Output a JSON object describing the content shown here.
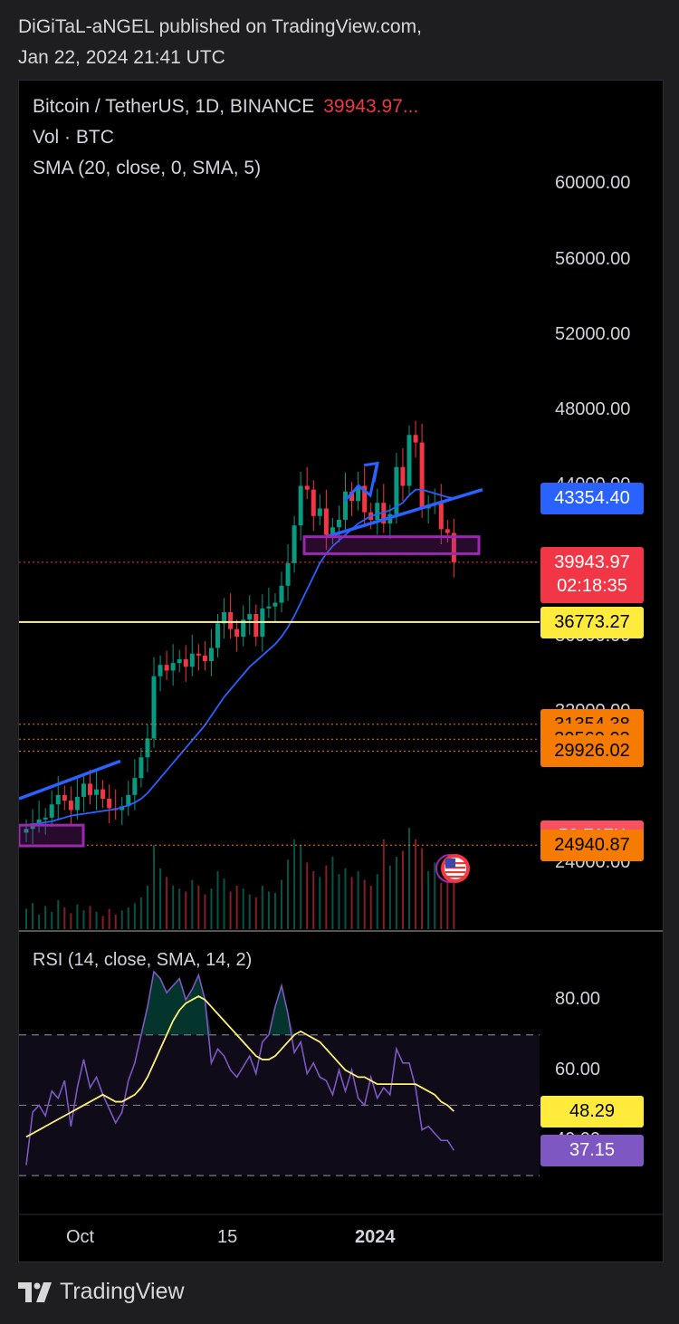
{
  "header": {
    "line1": "DiGiTaL-aNGEL published on TradingView.com,",
    "line2": "Jan 22, 2024 21:41 UTC"
  },
  "legend": {
    "symbol": "Bitcoin / TetherUS, 1D, BINANCE",
    "last_price": "39943.97...",
    "volume": "Vol · BTC",
    "sma": "SMA (20, close, 0, SMA, 5)"
  },
  "price_axis": [
    {
      "label": "60000.00",
      "value": 60000
    },
    {
      "label": "56000.00",
      "value": 56000
    },
    {
      "label": "52000.00",
      "value": 52000
    },
    {
      "label": "48000.00",
      "value": 48000
    },
    {
      "label": "44000.00",
      "value": 44000
    },
    {
      "label": "36000.00",
      "value": 36000
    },
    {
      "label": "32000.00",
      "value": 32000
    },
    {
      "label": "24000.00",
      "value": 24000
    }
  ],
  "badges": {
    "sma_value": {
      "text": "43354.40",
      "value": 43354.4,
      "color": "#2962ff"
    },
    "last_price": {
      "text": "39943.97",
      "countdown": "02:18:35",
      "value": 39943.97,
      "color": "#f23645"
    },
    "hline_yellow": {
      "text": "36773.27",
      "value": 36773.27,
      "color": "#ffeb3b"
    },
    "level_1": {
      "text": "31354.38",
      "value": 31354.38,
      "color": "#f57c00"
    },
    "level_2": {
      "text": "30560.03",
      "value": 30560.03,
      "color": "#f57c00"
    },
    "level_3": {
      "text": "29926.02",
      "value": 29926.02,
      "color": "#f57c00"
    },
    "volume": {
      "text": "50.717K",
      "color": "#f7525f"
    },
    "level_4": {
      "text": "24940.87",
      "value": 24940.87,
      "color": "#f57c00"
    }
  },
  "rsi": {
    "legend": "RSI (14, close, SMA, 14, 2)",
    "axis": [
      {
        "label": "80.00",
        "value": 80
      },
      {
        "label": "60.00",
        "value": 60
      },
      {
        "label": "40.00",
        "value": 40
      }
    ],
    "rsi_badge": {
      "text": "37.15",
      "value": 37.15,
      "color": "#7e57c2"
    },
    "sma_badge": {
      "text": "48.29",
      "value": 48.29,
      "color": "#ffeb3b"
    },
    "bands": {
      "upper": 70,
      "middle": 50,
      "lower": 30
    }
  },
  "x_axis": [
    "Oct",
    "15",
    "2024"
  ],
  "brand": "TradingView",
  "chart_data": {
    "type": "line",
    "title": "Bitcoin / TetherUS, 1D, BINANCE",
    "series": [
      {
        "name": "Price (close, approx.)",
        "values": [
          25800,
          26100,
          26300,
          26400,
          27100,
          27600,
          27300,
          26800,
          27500,
          28200,
          27600,
          27900,
          27400,
          26900,
          26800,
          27000,
          27600,
          28500,
          29600,
          30600,
          33900,
          34500,
          34200,
          34600,
          34800,
          34400,
          35100,
          35000,
          34700,
          35400,
          36700,
          37300,
          36400,
          36000,
          36900,
          37200,
          36000,
          37500,
          37600,
          37800,
          38700,
          39900,
          41900,
          44000,
          43800,
          42400,
          42800,
          41400,
          41800,
          42200,
          43700,
          43200,
          44000,
          42600,
          42200,
          43100,
          42000,
          42500,
          45000,
          44000,
          46700,
          46300,
          42800,
          43000,
          43100,
          41700,
          41500,
          39943.97
        ]
      },
      {
        "name": "SMA (20, close, 0, SMA, 5)",
        "values": [
          26000,
          26050,
          26100,
          26150,
          26200,
          26300,
          26400,
          26500,
          26550,
          26600,
          26650,
          26700,
          26750,
          26800,
          26850,
          26950,
          27050,
          27200,
          27400,
          27700,
          28100,
          28500,
          28900,
          29300,
          29700,
          30100,
          30500,
          30900,
          31300,
          31800,
          32300,
          32800,
          33200,
          33600,
          34000,
          34400,
          34700,
          35000,
          35300,
          35600,
          36000,
          36500,
          37100,
          37800,
          38500,
          39200,
          39900,
          40400,
          40800,
          41100,
          41400,
          41700,
          42000,
          42200,
          42400,
          42500,
          42600,
          42700,
          42900,
          43100,
          43500,
          43800,
          43800,
          43700,
          43600,
          43500,
          43400,
          43354.4
        ]
      },
      {
        "name": "RSI (14, close, SMA, 14, 2)",
        "values": [
          33,
          48,
          50,
          47,
          54,
          52,
          57,
          44,
          55,
          63,
          55,
          58,
          53,
          49,
          45,
          48,
          57,
          62,
          70,
          78,
          88,
          86,
          82,
          84,
          86,
          80,
          83,
          87,
          80,
          62,
          66,
          64,
          60,
          58,
          61,
          64,
          59,
          68,
          70,
          78,
          84,
          76,
          65,
          68,
          59,
          62,
          58,
          57,
          53,
          60,
          54,
          60,
          52,
          50,
          58,
          52,
          55,
          53,
          66,
          62,
          62,
          55,
          43,
          44,
          42,
          40,
          40,
          37.15
        ]
      },
      {
        "name": "RSI SMA",
        "values": [
          41,
          42,
          43,
          44,
          45,
          46,
          47,
          48,
          49,
          50,
          51,
          52,
          53,
          52,
          51,
          51,
          52,
          53,
          55,
          58,
          62,
          66,
          70,
          74,
          77,
          79,
          80,
          81,
          80,
          78,
          76,
          74,
          72,
          70,
          68,
          66,
          64,
          63,
          63,
          64,
          66,
          68,
          70,
          71,
          70,
          69,
          68,
          66,
          64,
          62,
          60,
          59,
          58,
          58,
          57,
          56,
          56,
          56,
          56,
          56,
          56,
          56,
          55,
          54,
          53,
          51,
          50,
          48.29
        ]
      }
    ],
    "volume_k": [
      14,
      18,
      10,
      16,
      12,
      20,
      15,
      11,
      17,
      13,
      16,
      12,
      9,
      14,
      10,
      13,
      15,
      18,
      22,
      30,
      58,
      42,
      36,
      30,
      28,
      26,
      34,
      30,
      24,
      28,
      40,
      35,
      26,
      30,
      28,
      24,
      22,
      30,
      26,
      25,
      34,
      48,
      62,
      58,
      46,
      40,
      36,
      44,
      50,
      38,
      42,
      36,
      40,
      34,
      30,
      38,
      62,
      44,
      50,
      54,
      70,
      62,
      56,
      40,
      46,
      32,
      38,
      50.717
    ],
    "horizontal_lines": [
      36773.27,
      31354.38,
      30560.03,
      29926.02,
      24940.87,
      39943.97
    ],
    "ylim": [
      22500,
      63000
    ],
    "rsi_ylim": [
      20,
      98
    ],
    "x_ticks": [
      "Oct",
      "15",
      "2024"
    ]
  }
}
